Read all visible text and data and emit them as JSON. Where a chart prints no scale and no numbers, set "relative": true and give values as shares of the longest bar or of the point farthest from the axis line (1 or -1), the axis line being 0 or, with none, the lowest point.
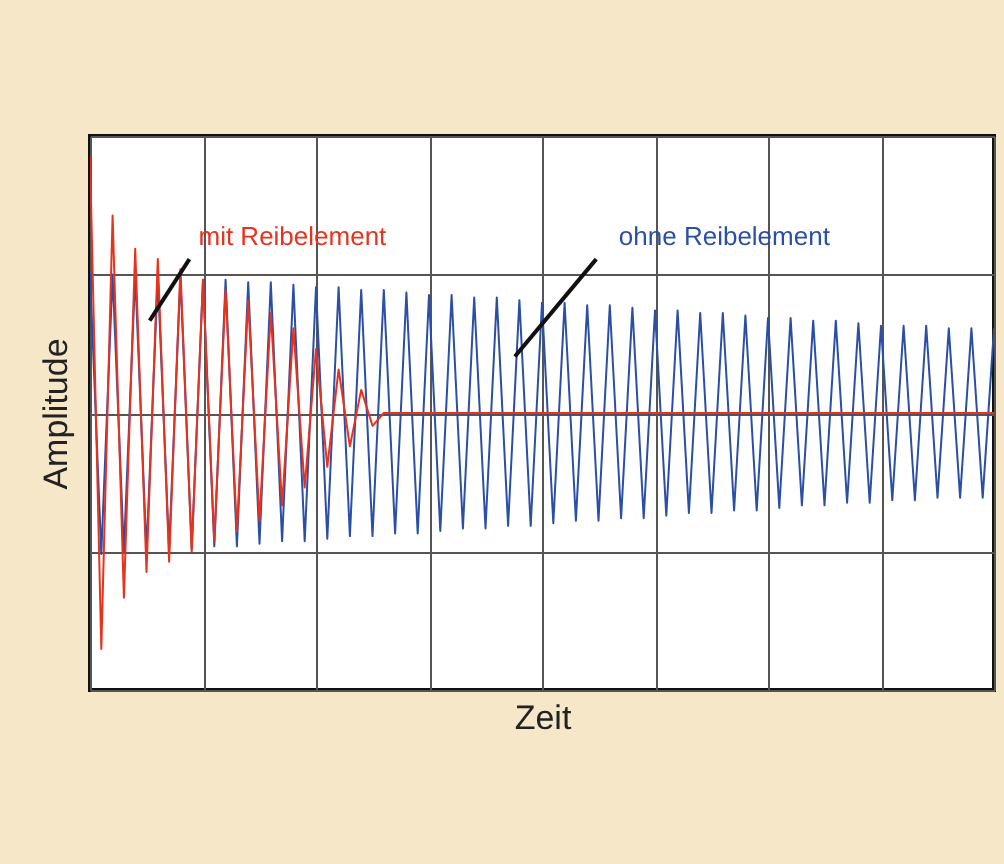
{
  "chart_data": {
    "type": "line",
    "relative": true,
    "xlabel": "Zeit",
    "ylabel": "Amplitude",
    "grid": true,
    "categories": [
      null,
      null,
      null,
      null,
      null,
      null,
      null,
      null,
      null,
      null,
      null,
      null,
      null,
      null,
      null,
      null,
      null,
      null,
      null,
      null,
      null,
      null,
      null,
      null,
      null,
      null,
      null,
      null,
      null,
      null,
      null,
      null,
      null,
      null,
      null,
      null,
      null,
      null,
      null,
      null,
      null,
      null,
      null,
      null,
      null,
      null,
      null,
      null,
      null,
      null,
      null,
      null,
      null,
      null,
      null,
      null,
      null,
      null,
      null,
      null,
      null,
      null,
      null,
      null,
      null,
      null,
      null,
      null,
      null,
      null,
      null,
      null,
      null,
      null,
      null,
      null,
      null,
      null,
      null,
      null,
      null
    ],
    "series": [
      {
        "name": "ohne Reibelement",
        "color": "#2b4fa6",
        "values": [
          0.55,
          -0.55,
          0.54,
          -0.54,
          0.54,
          -0.54,
          0.53,
          -0.53,
          0.53,
          -0.53,
          0.52,
          -0.52,
          0.52,
          -0.52,
          0.51,
          -0.51,
          0.51,
          -0.5,
          0.5,
          -0.5,
          0.49,
          -0.49,
          0.49,
          -0.48,
          0.48,
          -0.48,
          0.48,
          -0.47,
          0.47,
          -0.47,
          0.46,
          -0.46,
          0.46,
          -0.45,
          0.45,
          -0.45,
          0.45,
          -0.44,
          0.44,
          -0.44,
          0.43,
          -0.43,
          0.43,
          -0.42,
          0.42,
          -0.42,
          0.42,
          -0.41,
          0.41,
          -0.41,
          0.4,
          -0.4,
          0.4,
          -0.39,
          0.39,
          -0.39,
          0.39,
          -0.38,
          0.38,
          -0.38,
          0.37,
          -0.37,
          0.37,
          -0.36,
          0.36,
          -0.36,
          0.36,
          -0.35,
          0.35,
          -0.35,
          0.34,
          -0.34,
          0.34,
          -0.34,
          0.34,
          -0.33,
          0.33,
          -0.33,
          0.33,
          -0.33,
          0.33
        ]
      },
      {
        "name": "mit Reibelement",
        "color": "#e8321e",
        "values": [
          1,
          -0.92,
          0.77,
          -0.72,
          0.64,
          -0.62,
          0.6,
          -0.58,
          0.56,
          -0.54,
          0.52,
          -0.5,
          0.48,
          -0.46,
          0.44,
          -0.42,
          0.39,
          -0.36,
          0.33,
          -0.29,
          0.25,
          -0.21,
          0.17,
          -0.13,
          0.09,
          -0.05,
          0,
          0,
          0,
          0,
          0,
          0,
          0,
          0,
          0,
          0,
          0,
          0,
          0,
          0,
          0,
          0,
          0,
          0,
          0,
          0,
          0,
          0,
          0,
          0,
          0,
          0,
          0,
          0,
          0,
          0,
          0,
          0,
          0,
          0,
          0,
          0,
          0,
          0,
          0,
          0,
          0,
          0,
          0,
          0,
          0,
          0,
          0,
          0,
          0,
          0,
          0,
          0,
          0,
          0,
          0
        ]
      }
    ]
  }
}
